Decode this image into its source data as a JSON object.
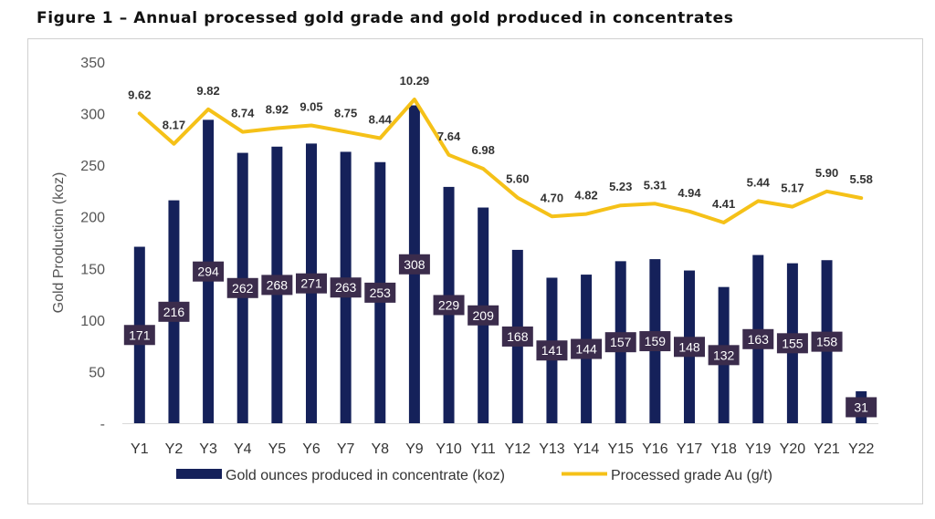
{
  "figure_title": "Figure 1 – Annual processed gold grade and gold produced in concentrates",
  "colors": {
    "bar": "#15215a",
    "line": "#f5c118",
    "bar_label_bg": "#3b2c4c",
    "bar_label_text": "#ffffff",
    "grade_label_text": "#333333",
    "axis_text": "#555555"
  },
  "chart_data": {
    "type": "bar+line",
    "title": "Figure 1 – Annual processed gold grade and gold produced in concentrates",
    "xlabel": "",
    "ylabel": "Gold Production (koz)",
    "ylim": [
      0,
      350
    ],
    "yticks": [
      "-",
      "50",
      "100",
      "150",
      "200",
      "250",
      "300",
      "350"
    ],
    "ytick_values": [
      0,
      50,
      100,
      150,
      200,
      250,
      300,
      350
    ],
    "grid": false,
    "legend_position": "bottom",
    "categories": [
      "Y1",
      "Y2",
      "Y3",
      "Y4",
      "Y5",
      "Y6",
      "Y7",
      "Y8",
      "Y9",
      "Y10",
      "Y11",
      "Y12",
      "Y13",
      "Y14",
      "Y15",
      "Y16",
      "Y17",
      "Y18",
      "Y19",
      "Y20",
      "Y21",
      "Y22"
    ],
    "series": [
      {
        "name": "Gold ounces produced in concentrate (koz)",
        "type": "bar",
        "axis": "primary",
        "values": [
          171,
          216,
          294,
          262,
          268,
          271,
          263,
          253,
          308,
          229,
          209,
          168,
          141,
          144,
          157,
          159,
          148,
          132,
          163,
          155,
          158,
          31
        ],
        "labels": [
          "171",
          "216",
          "294",
          "262",
          "268",
          "271",
          "263",
          "253",
          "308",
          "229",
          "209",
          "168",
          "141",
          "144",
          "157",
          "159",
          "148",
          "132",
          "163",
          "155",
          "158",
          "31"
        ]
      },
      {
        "name": "Processed grade Au (g/t)",
        "type": "line",
        "axis": "secondary-hidden",
        "values": [
          9.62,
          8.17,
          9.82,
          8.74,
          8.92,
          9.05,
          8.75,
          8.44,
          10.29,
          7.64,
          6.98,
          5.6,
          4.7,
          4.82,
          5.23,
          5.31,
          4.94,
          4.41,
          5.44,
          5.17,
          5.9,
          5.58
        ],
        "labels": [
          "9.62",
          "8.17",
          "9.82",
          "8.74",
          "8.92",
          "9.05",
          "8.75",
          "8.44",
          "10.29",
          "7.64",
          "6.98",
          "5.60",
          "4.70",
          "4.82",
          "5.23",
          "5.31",
          "4.94",
          "4.41",
          "5.44",
          "5.17",
          "5.90",
          "5.58"
        ]
      }
    ]
  }
}
